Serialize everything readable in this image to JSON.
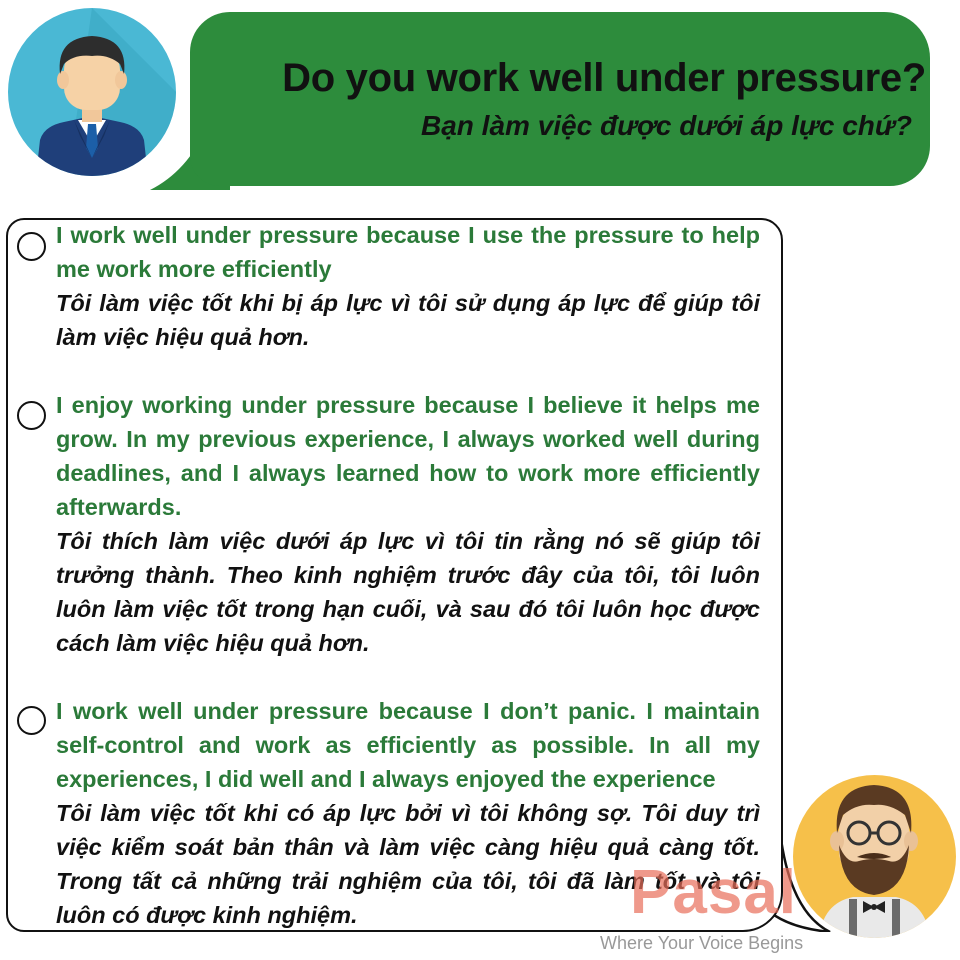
{
  "header": {
    "question_en": "Do you work well under pressure?",
    "question_vi": "Bạn làm việc được dưới áp lực chứ?"
  },
  "answers": [
    {
      "en": "I work well under pressure because I use the pressure to help me work more efficiently",
      "vi": "Tôi làm việc tốt khi bị áp lực vì tôi sử dụng áp lực để giúp tôi làm việc hiệu quả hơn."
    },
    {
      "en": "I enjoy working under pressure because I believe it helps me grow. In my previous experience, I always worked well during deadlines, and I always learned how to work more efficiently afterwards.",
      "vi": "Tôi thích làm việc dưới áp lực vì tôi tin rằng nó sẽ giúp tôi trưởng thành. Theo kinh nghiệm trước đây của tôi, tôi luôn luôn làm việc tốt trong hạn cuối, và sau đó tôi luôn học được cách làm việc hiệu quả hơn."
    },
    {
      "en": "I work well under pressure because I don’t panic. I maintain self-control and work as efficiently as possible. In all my experiences, I did well and I always enjoyed the experience",
      "vi": "Tôi làm việc tốt khi có áp lực bởi vì tôi không sợ. Tôi duy trì việc kiểm soát bản thân và làm việc càng hiệu quả càng tốt. Trong tất cả những trải nghiệm của tôi, tôi đã làm tốt và tôi luôn có được kinh nghiệm."
    }
  ],
  "brand": {
    "logo_text": "Pasal",
    "tagline": "Where Your Voice Begins"
  },
  "colors": {
    "banner_green": "#2d8c3c",
    "english_text": "#2b7a39",
    "vietnamese_text": "#111111",
    "left_avatar_bg": "#4ab8d4",
    "right_avatar_bg": "#f6c04a",
    "logo": "#e86e5a"
  },
  "icons": [
    "businessman-avatar-icon",
    "bearded-man-avatar-icon",
    "radio-circle-icon"
  ]
}
